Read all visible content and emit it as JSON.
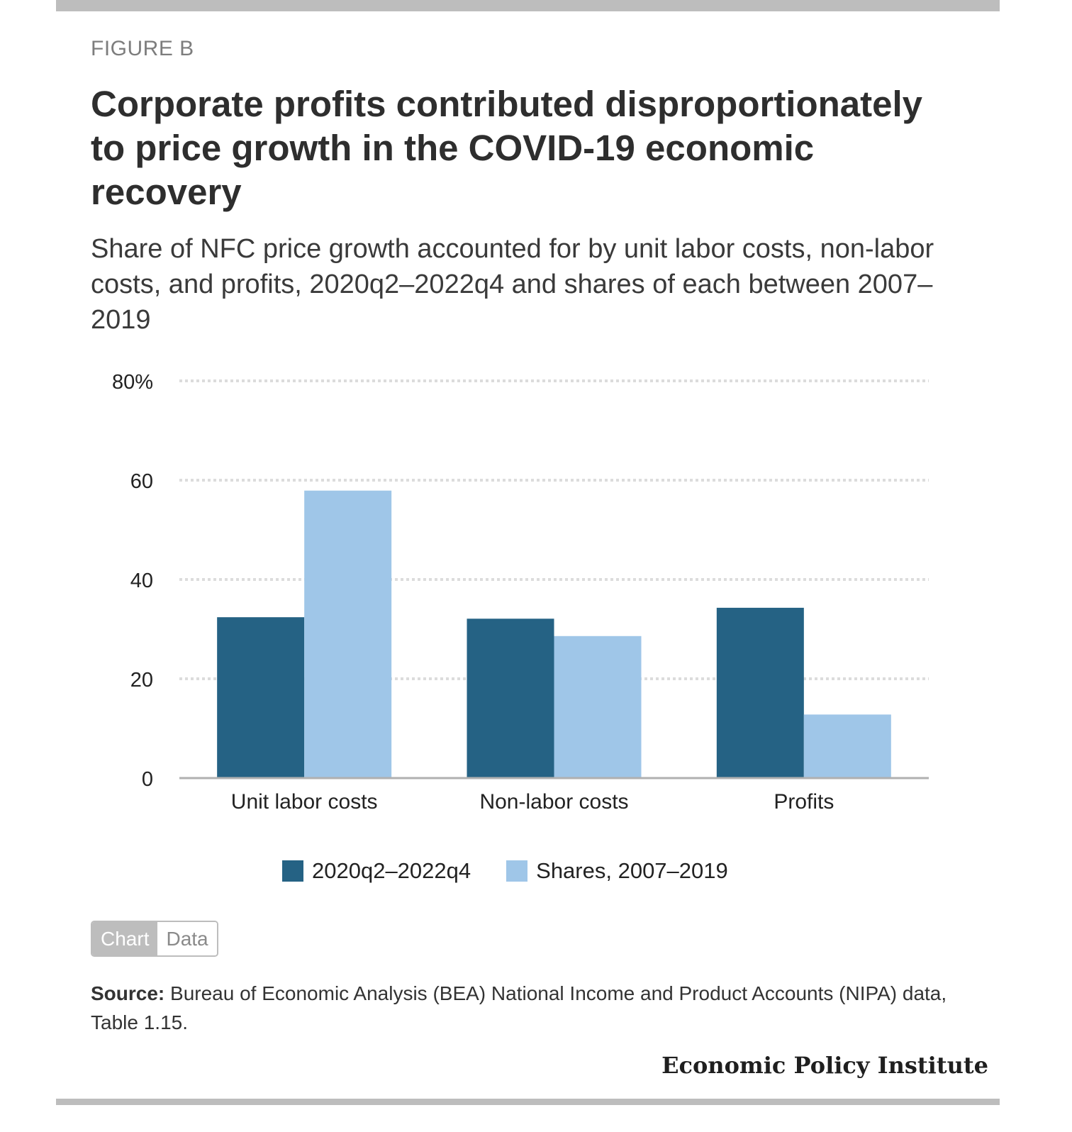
{
  "figure_label": "FIGURE B",
  "title": "Corporate profits contributed disproportionately to price growth in the COVID-19 economic recovery",
  "subtitle": "Share of NFC price growth accounted for by unit labor costs, non-labor costs, and profits, 2020q2–2022q4 and shares of each between 2007–2019",
  "chart_data": {
    "type": "bar",
    "categories": [
      "Unit labor costs",
      "Non-labor costs",
      "Profits"
    ],
    "series": [
      {
        "name": "2020q2–2022q4",
        "values": [
          32.4,
          32.1,
          34.3
        ],
        "color": "#256284"
      },
      {
        "name": "Shares, 2007–2019",
        "values": [
          57.9,
          28.6,
          12.8
        ],
        "color": "#9fc6e8"
      }
    ],
    "ylim": [
      0,
      80
    ],
    "yticks": [
      0,
      20,
      40,
      60,
      80
    ],
    "ytick_labels": [
      "0",
      "20",
      "40",
      "60",
      "80%"
    ],
    "grid": true,
    "legend_position": "bottom"
  },
  "toggle": {
    "chart_label": "Chart",
    "data_label": "Data"
  },
  "source": {
    "label": "Source:",
    "text": "Bureau of Economic Analysis (BEA) National Income and Product Accounts (NIPA) data, Table 1.15."
  },
  "brand": "Economic Policy Institute"
}
